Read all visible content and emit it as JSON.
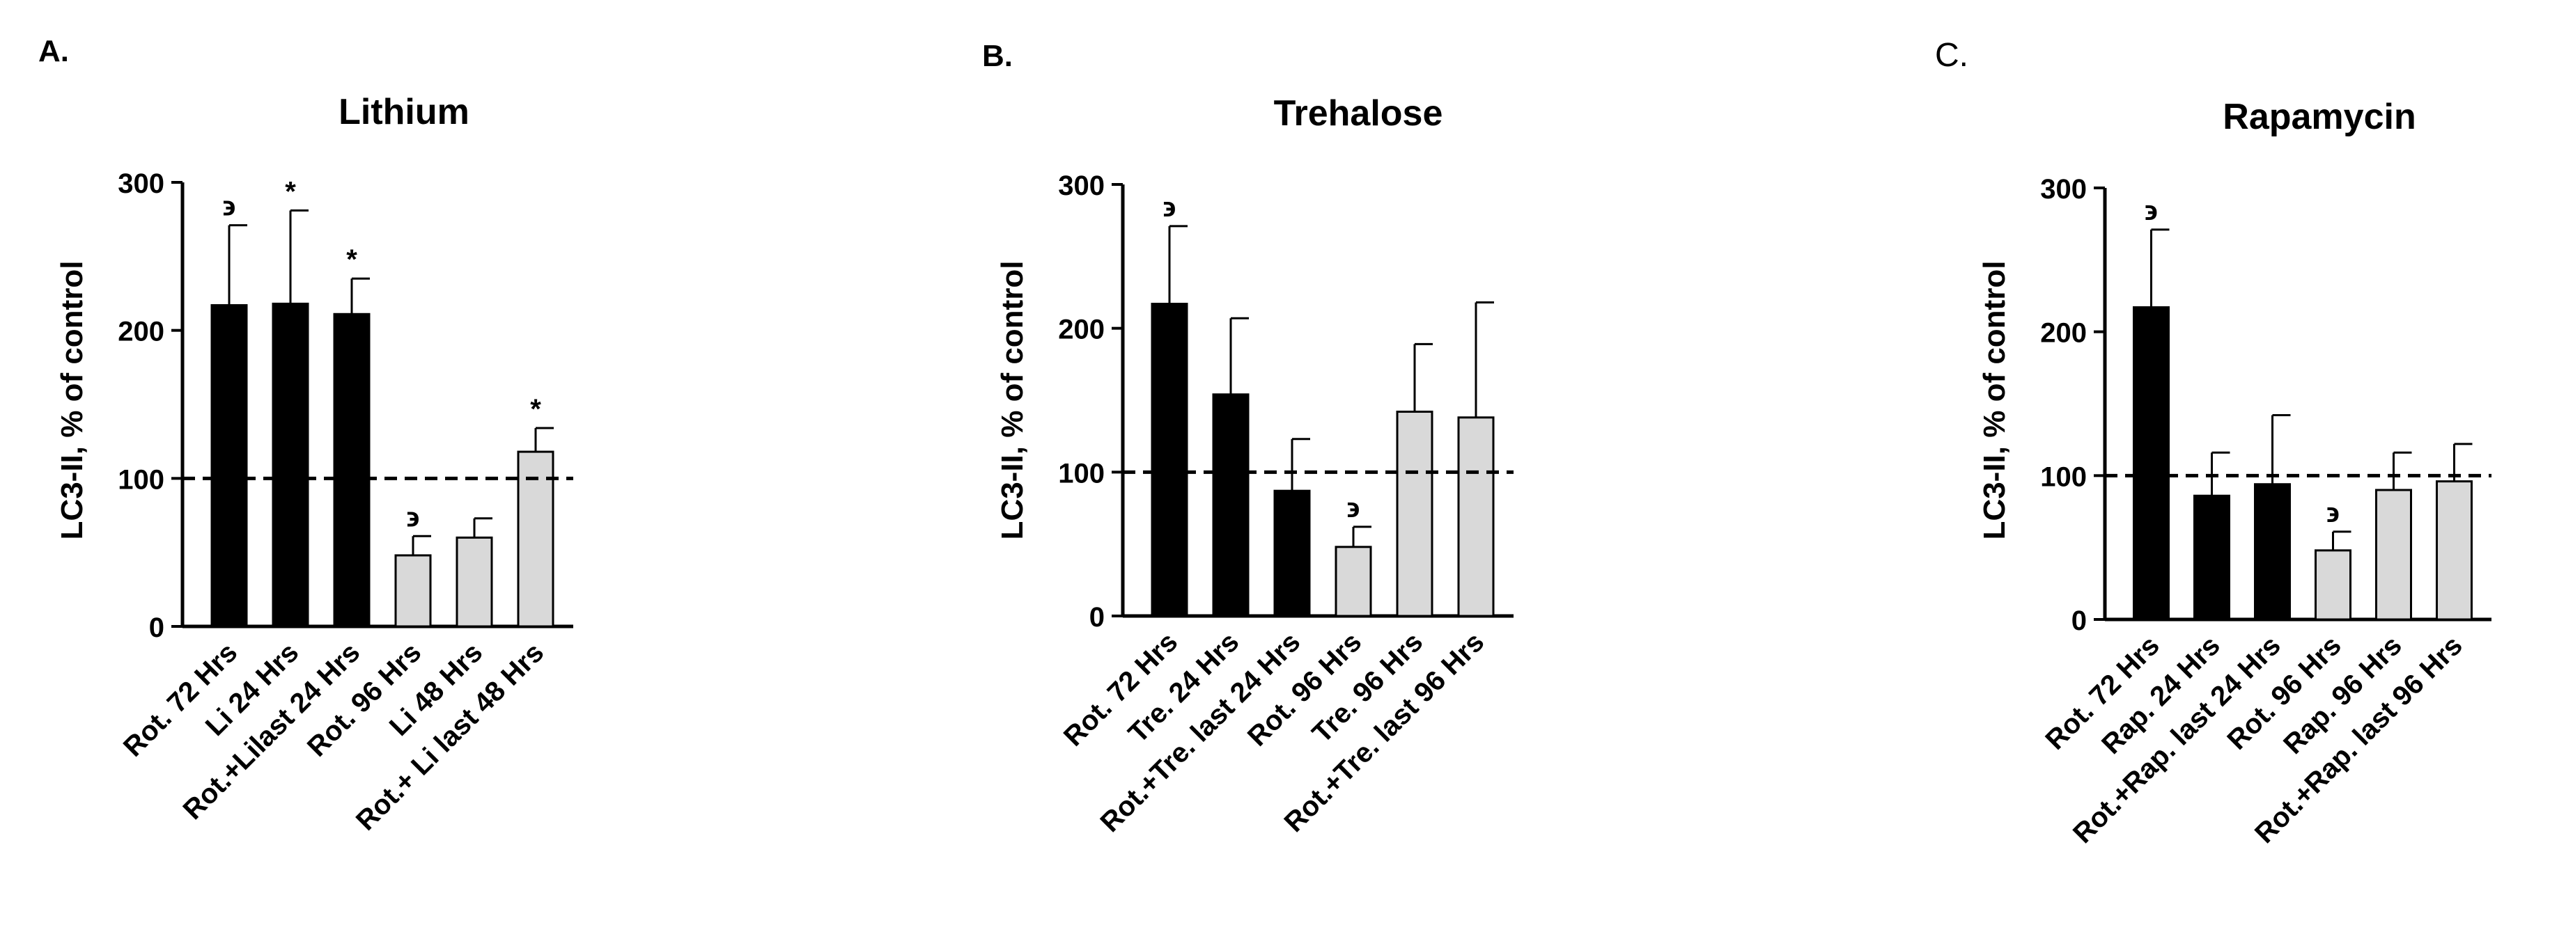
{
  "colors": {
    "treated": "#000000",
    "untreated": "#d9d9d9",
    "axis": "#000000"
  },
  "chart_data": [
    {
      "type": "bar",
      "panel_label": "A.",
      "title": "Lithium",
      "ylabel": "LC3-II, % of control",
      "ylim": [
        0,
        300
      ],
      "yticks": [
        "0",
        "100",
        "200",
        "300"
      ],
      "reference_line": 100,
      "categories": [
        "Rot. 72 Hrs",
        "Li 24 Hrs",
        "Rot.+Lilast 24 Hrs",
        "Rot. 96 Hrs",
        "Li 48 Hrs",
        "Rot.+ Li last 48 Hrs"
      ],
      "values": [
        217,
        218,
        211,
        48,
        60,
        118
      ],
      "errors": [
        54,
        63,
        24,
        13,
        13,
        16
      ],
      "fill": [
        "black",
        "black",
        "black",
        "gray",
        "gray",
        "gray"
      ],
      "markers": [
        "϶",
        "*",
        "*",
        "϶",
        "",
        "*"
      ]
    },
    {
      "type": "bar",
      "panel_label": "B.",
      "title": "Trehalose",
      "ylabel": "LC3-II, % of control",
      "ylim": [
        0,
        300
      ],
      "yticks": [
        "0",
        "100",
        "200",
        "300"
      ],
      "reference_line": 100,
      "categories": [
        "Rot. 72 Hrs",
        "Tre. 24 Hrs",
        "Rot.+Tre. last 24 Hrs",
        "Rot. 96 Hrs",
        "Tre. 96 Hrs",
        "Rot.+Tre. last 96 Hrs"
      ],
      "values": [
        217,
        154,
        87,
        48,
        142,
        138
      ],
      "errors": [
        54,
        53,
        36,
        14,
        47,
        80
      ],
      "fill": [
        "black",
        "black",
        "black",
        "gray",
        "gray",
        "gray"
      ],
      "markers": [
        "϶",
        "",
        "",
        "϶",
        "",
        ""
      ]
    },
    {
      "type": "bar",
      "panel_label": "C.",
      "title": "Rapamycin",
      "ylabel": "LC3-II, % of control",
      "ylim": [
        0,
        300
      ],
      "yticks": [
        "0",
        "100",
        "200",
        "300"
      ],
      "reference_line": 100,
      "categories": [
        "Rot. 72 Hrs",
        "Rap. 24 Hrs",
        "Rot.+Rap. last 24 Hrs",
        "Rot. 96 Hrs",
        "Rap. 96 Hrs",
        "Rot.+Rap. last 96 Hrs"
      ],
      "values": [
        217,
        86,
        94,
        48,
        90,
        96
      ],
      "errors": [
        54,
        30,
        48,
        13,
        26,
        26
      ],
      "fill": [
        "black",
        "black",
        "black",
        "gray",
        "gray",
        "gray"
      ],
      "markers": [
        "϶",
        "",
        "",
        "϶",
        "",
        ""
      ]
    }
  ]
}
